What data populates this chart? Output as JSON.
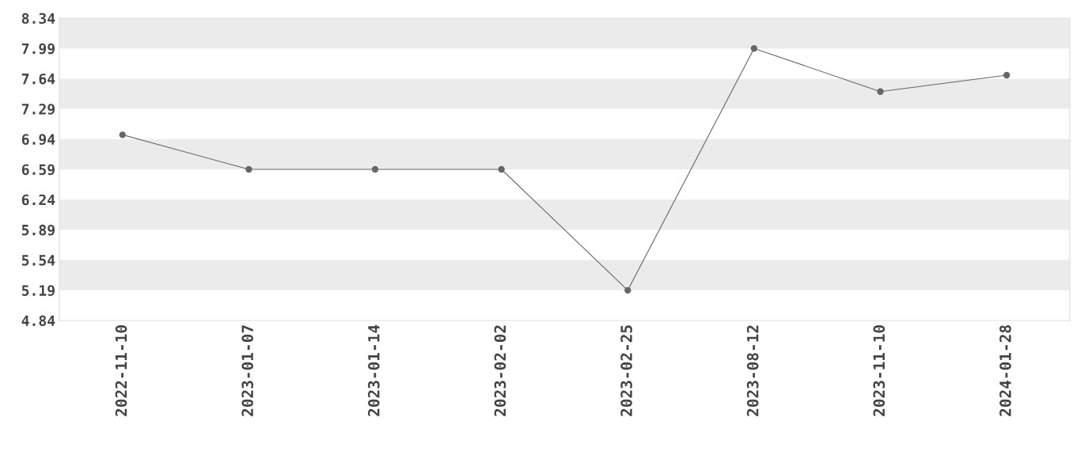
{
  "chart_data": {
    "type": "line",
    "categories": [
      "2022-11-10",
      "2023-01-07",
      "2023-01-14",
      "2023-02-02",
      "2023-02-25",
      "2023-08-12",
      "2023-11-10",
      "2024-01-28"
    ],
    "series": [
      {
        "color": "#666666",
        "values": [
          6.99,
          6.59,
          6.59,
          6.59,
          5.19,
          7.99,
          7.49,
          7.68
        ]
      }
    ],
    "ylim": [
      4.84,
      8.34
    ],
    "yticks": [
      4.84,
      5.19,
      5.54,
      5.89,
      6.24,
      6.59,
      6.94,
      7.29,
      7.64,
      7.99,
      8.34
    ],
    "bands": [
      {
        "axis": "y",
        "from": 7.99,
        "to": 8.34,
        "color": "#ebebeb"
      },
      {
        "axis": "y",
        "from": 7.29,
        "to": 7.64,
        "color": "#ebebeb"
      },
      {
        "axis": "y",
        "from": 6.59,
        "to": 6.94,
        "color": "#ebebeb"
      },
      {
        "axis": "y",
        "from": 5.89,
        "to": 6.24,
        "color": "#ebebeb"
      },
      {
        "axis": "y",
        "from": 5.19,
        "to": 5.54,
        "color": "#ebebeb"
      }
    ],
    "marker": "circle",
    "line_style": "solid"
  }
}
